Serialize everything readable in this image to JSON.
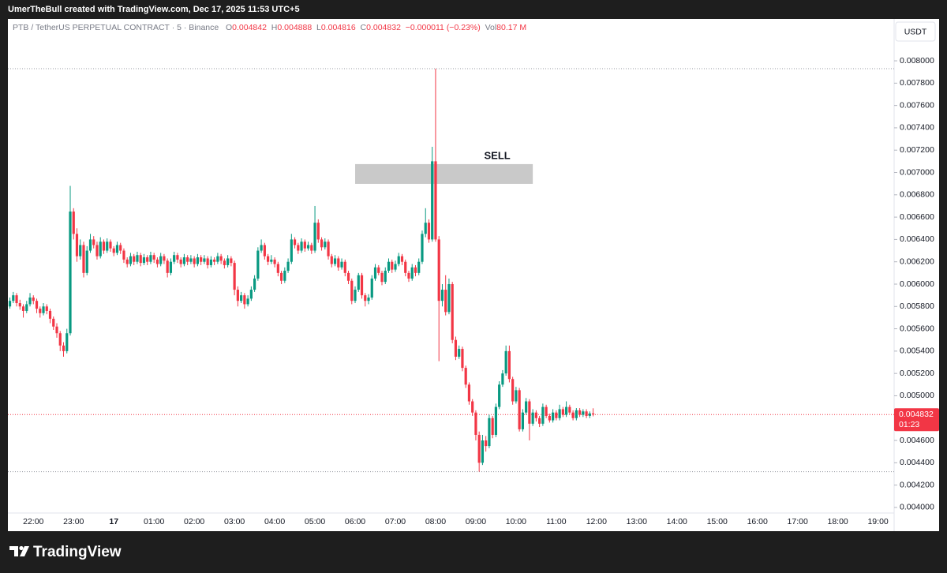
{
  "header": {
    "credit": "UmerTheBull created with TradingView.com, Dec 17, 2025 11:53 UTC+5"
  },
  "footer": {
    "brand": "TradingView"
  },
  "chart_data": {
    "type": "candlestick",
    "legend": {
      "symbol": "PTB / TetherUS PERPETUAL CONTRACT · 5 · Binance",
      "open_label": "O",
      "open": 0.004842,
      "high_label": "H",
      "high": 0.004888,
      "low_label": "L",
      "low": 0.004816,
      "close_label": "C",
      "close": 0.004832,
      "change": "−0.000011 (−0.23%)",
      "volume_label": "Vol",
      "volume": "80.17 M"
    },
    "currency": "USDT",
    "up_color": "#089981",
    "down_color": "#f23645",
    "x": [
      "21:25",
      "21:30",
      "21:35",
      "21:40",
      "21:45",
      "21:50",
      "21:55",
      "22:00",
      "22:05",
      "22:10",
      "22:15",
      "22:20",
      "22:25",
      "22:30",
      "22:35",
      "22:40",
      "22:45",
      "22:50",
      "22:55",
      "23:00",
      "23:05",
      "23:10",
      "23:15",
      "23:20",
      "23:25",
      "23:30",
      "23:35",
      "23:40",
      "23:45",
      "23:50",
      "23:55",
      "00:00",
      "00:05",
      "00:10",
      "00:15",
      "00:20",
      "00:25",
      "00:30",
      "00:35",
      "00:40",
      "00:45",
      "00:50",
      "00:55",
      "01:00",
      "01:05",
      "01:10",
      "01:15",
      "01:20",
      "01:25",
      "01:30",
      "01:35",
      "01:40",
      "01:45",
      "01:50",
      "01:55",
      "02:00",
      "02:05",
      "02:10",
      "02:15",
      "02:20",
      "02:25",
      "02:30",
      "02:35",
      "02:40",
      "02:45",
      "02:50",
      "02:55",
      "03:00",
      "03:05",
      "03:10",
      "03:15",
      "03:20",
      "03:25",
      "03:30",
      "03:35",
      "03:40",
      "03:45",
      "03:50",
      "03:55",
      "04:00",
      "04:05",
      "04:10",
      "04:15",
      "04:20",
      "04:25",
      "04:30",
      "04:35",
      "04:40",
      "04:45",
      "04:50",
      "04:55",
      "05:00",
      "05:05",
      "05:10",
      "05:15",
      "05:20",
      "05:25",
      "05:30",
      "05:35",
      "05:40",
      "05:45",
      "05:50",
      "05:55",
      "06:00",
      "06:05",
      "06:10",
      "06:15",
      "06:20",
      "06:25",
      "06:30",
      "06:35",
      "06:40",
      "06:45",
      "06:50",
      "06:55",
      "07:00",
      "07:05",
      "07:10",
      "07:15",
      "07:20",
      "07:25",
      "07:30",
      "07:35",
      "07:40",
      "07:45",
      "07:50",
      "07:55",
      "08:00",
      "08:05",
      "08:10",
      "08:15",
      "08:20",
      "08:25",
      "08:30",
      "08:35",
      "08:40",
      "08:45",
      "08:50",
      "08:55",
      "09:00",
      "09:05",
      "09:10",
      "09:15",
      "09:20",
      "09:25",
      "09:30",
      "09:35",
      "09:40",
      "09:45",
      "09:50",
      "09:55",
      "10:00",
      "10:05",
      "10:10",
      "10:15",
      "10:20",
      "10:25",
      "10:30",
      "10:35",
      "10:40",
      "10:45",
      "10:50",
      "10:55",
      "11:00",
      "11:05",
      "11:10",
      "11:15",
      "11:20",
      "11:25",
      "11:30",
      "11:35",
      "11:40",
      "11:45",
      "11:50",
      "11:55"
    ],
    "open": [
      0.0058,
      0.00585,
      0.0059,
      0.00583,
      0.0058,
      0.00576,
      0.00582,
      0.00588,
      0.00585,
      0.00578,
      0.00574,
      0.0058,
      0.00576,
      0.00569,
      0.00562,
      0.00556,
      0.00545,
      0.0054,
      0.00556,
      0.00665,
      0.00645,
      0.00625,
      0.00635,
      0.0061,
      0.0063,
      0.0064,
      0.00635,
      0.00625,
      0.00638,
      0.0063,
      0.00638,
      0.00632,
      0.00628,
      0.00635,
      0.0063,
      0.00622,
      0.00618,
      0.00625,
      0.0062,
      0.00626,
      0.00619,
      0.00624,
      0.0062,
      0.00626,
      0.00622,
      0.00618,
      0.00625,
      0.00621,
      0.0061,
      0.0062,
      0.00626,
      0.00622,
      0.00618,
      0.00624,
      0.0062,
      0.00623,
      0.00618,
      0.00624,
      0.0062,
      0.00623,
      0.00617,
      0.00622,
      0.0062,
      0.00625,
      0.00621,
      0.00617,
      0.00623,
      0.00619,
      0.00595,
      0.00585,
      0.0059,
      0.00582,
      0.00587,
      0.00595,
      0.00605,
      0.0063,
      0.00635,
      0.00625,
      0.0062,
      0.00622,
      0.00618,
      0.0061,
      0.00603,
      0.00612,
      0.0062,
      0.0064,
      0.00635,
      0.0063,
      0.00638,
      0.00632,
      0.00635,
      0.0063,
      0.00655,
      0.0064,
      0.00633,
      0.00638,
      0.00625,
      0.00618,
      0.00623,
      0.00615,
      0.0062,
      0.0061,
      0.00603,
      0.00585,
      0.00595,
      0.00608,
      0.0059,
      0.00585,
      0.00588,
      0.00605,
      0.00615,
      0.0061,
      0.00602,
      0.00612,
      0.0062,
      0.00613,
      0.00618,
      0.00625,
      0.0062,
      0.0061,
      0.00605,
      0.00615,
      0.0061,
      0.0062,
      0.00645,
      0.00655,
      0.0064,
      0.0071,
      0.0064,
      0.00585,
      0.00595,
      0.00575,
      0.006,
      0.0055,
      0.00535,
      0.00542,
      0.00525,
      0.0051,
      0.00495,
      0.00485,
      0.00465,
      0.0044,
      0.0046,
      0.00455,
      0.0048,
      0.00465,
      0.0049,
      0.0051,
      0.0052,
      0.0054,
      0.00515,
      0.00495,
      0.00505,
      0.0047,
      0.00485,
      0.00495,
      0.00475,
      0.00485,
      0.0048,
      0.00475,
      0.0049,
      0.00482,
      0.00478,
      0.00485,
      0.0048,
      0.00488,
      0.00483,
      0.0049,
      0.00485,
      0.0048,
      0.00487,
      0.00483,
      0.00486,
      0.00482,
      0.004842
    ],
    "high": [
      0.00588,
      0.00593,
      0.00592,
      0.00586,
      0.00582,
      0.00585,
      0.00592,
      0.0059,
      0.00587,
      0.0058,
      0.00583,
      0.00582,
      0.00578,
      0.00571,
      0.00565,
      0.00558,
      0.00548,
      0.0056,
      0.00688,
      0.00668,
      0.0065,
      0.0064,
      0.00638,
      0.00634,
      0.00645,
      0.00643,
      0.00638,
      0.00642,
      0.0064,
      0.00641,
      0.0064,
      0.00634,
      0.00638,
      0.00637,
      0.00632,
      0.00624,
      0.00628,
      0.00627,
      0.00629,
      0.00628,
      0.00627,
      0.00626,
      0.00629,
      0.00628,
      0.00624,
      0.00628,
      0.00627,
      0.00623,
      0.00623,
      0.00629,
      0.00628,
      0.00624,
      0.00627,
      0.00626,
      0.00626,
      0.00625,
      0.00627,
      0.00626,
      0.00626,
      0.00625,
      0.00625,
      0.00624,
      0.00628,
      0.00627,
      0.00623,
      0.00626,
      0.00625,
      0.00621,
      0.00598,
      0.00593,
      0.00592,
      0.0059,
      0.00598,
      0.00608,
      0.00633,
      0.0064,
      0.00637,
      0.00627,
      0.00626,
      0.00624,
      0.0062,
      0.00612,
      0.00615,
      0.00623,
      0.00645,
      0.00642,
      0.00637,
      0.00641,
      0.0064,
      0.00638,
      0.00637,
      0.0067,
      0.00658,
      0.00642,
      0.00641,
      0.0064,
      0.00627,
      0.00626,
      0.00625,
      0.00623,
      0.00622,
      0.00612,
      0.00605,
      0.00598,
      0.0061,
      0.0061,
      0.00592,
      0.00591,
      0.00608,
      0.00618,
      0.00617,
      0.00612,
      0.00615,
      0.00623,
      0.00622,
      0.00621,
      0.00628,
      0.00627,
      0.00622,
      0.00612,
      0.00618,
      0.00617,
      0.00623,
      0.00648,
      0.00668,
      0.00658,
      0.00723,
      0.00793,
      0.00643,
      0.006,
      0.00608,
      0.00605,
      0.00602,
      0.00553,
      0.00545,
      0.00544,
      0.00527,
      0.00512,
      0.00497,
      0.00487,
      0.00468,
      0.00465,
      0.00464,
      0.00483,
      0.00482,
      0.00493,
      0.00513,
      0.00523,
      0.00545,
      0.00545,
      0.00517,
      0.00508,
      0.00507,
      0.00488,
      0.00498,
      0.00497,
      0.00488,
      0.00487,
      0.00482,
      0.00493,
      0.00492,
      0.00484,
      0.00488,
      0.00487,
      0.00492,
      0.0049,
      0.00495,
      0.00492,
      0.00487,
      0.00489,
      0.00489,
      0.00488,
      0.00488,
      0.00486,
      0.004888
    ],
    "low": [
      0.00578,
      0.00583,
      0.0058,
      0.00577,
      0.0057,
      0.00574,
      0.0058,
      0.00582,
      0.00574,
      0.0057,
      0.00572,
      0.00573,
      0.00565,
      0.00559,
      0.00552,
      0.0054,
      0.00535,
      0.00538,
      0.00554,
      0.0064,
      0.0062,
      0.00622,
      0.00606,
      0.00608,
      0.00628,
      0.00632,
      0.00622,
      0.00623,
      0.00627,
      0.00628,
      0.00629,
      0.00625,
      0.00626,
      0.00627,
      0.00619,
      0.00615,
      0.00616,
      0.00617,
      0.00618,
      0.00616,
      0.00617,
      0.00617,
      0.00618,
      0.00619,
      0.00615,
      0.00616,
      0.00618,
      0.00606,
      0.00608,
      0.00618,
      0.00619,
      0.00615,
      0.00616,
      0.00617,
      0.00618,
      0.00615,
      0.00616,
      0.00617,
      0.00618,
      0.00614,
      0.00615,
      0.00617,
      0.00618,
      0.00618,
      0.00614,
      0.00615,
      0.00616,
      0.0059,
      0.0058,
      0.00583,
      0.00578,
      0.0058,
      0.00585,
      0.00593,
      0.00603,
      0.00628,
      0.00622,
      0.00617,
      0.00618,
      0.00615,
      0.00607,
      0.006,
      0.00601,
      0.0061,
      0.00618,
      0.00632,
      0.00627,
      0.00628,
      0.00629,
      0.0063,
      0.00627,
      0.00628,
      0.00637,
      0.0063,
      0.00631,
      0.00622,
      0.00615,
      0.00616,
      0.00612,
      0.00613,
      0.00607,
      0.006,
      0.00582,
      0.00583,
      0.00593,
      0.00587,
      0.0058,
      0.00582,
      0.00586,
      0.00603,
      0.00608,
      0.00599,
      0.006,
      0.0061,
      0.0061,
      0.00611,
      0.00616,
      0.00617,
      0.00607,
      0.00602,
      0.00603,
      0.00607,
      0.00608,
      0.00618,
      0.00642,
      0.00637,
      0.00638,
      0.00638,
      0.00531,
      0.0058,
      0.00572,
      0.00573,
      0.00547,
      0.00532,
      0.00533,
      0.00522,
      0.00507,
      0.00492,
      0.00482,
      0.0046,
      0.00432,
      0.00438,
      0.0045,
      0.00453,
      0.00462,
      0.00463,
      0.00488,
      0.00508,
      0.00518,
      0.00512,
      0.00492,
      0.00493,
      0.00468,
      0.00468,
      0.00483,
      0.0046,
      0.00473,
      0.00477,
      0.00472,
      0.00473,
      0.0048,
      0.00476,
      0.00476,
      0.00478,
      0.00478,
      0.00481,
      0.00481,
      0.00483,
      0.00478,
      0.00478,
      0.00481,
      0.00481,
      0.0048,
      0.0048,
      0.004816
    ],
    "close": [
      0.00585,
      0.0059,
      0.00583,
      0.0058,
      0.00576,
      0.00582,
      0.00588,
      0.00585,
      0.00578,
      0.00574,
      0.0058,
      0.00576,
      0.00569,
      0.00562,
      0.00556,
      0.00545,
      0.0054,
      0.00556,
      0.00665,
      0.00645,
      0.00625,
      0.00635,
      0.0061,
      0.0063,
      0.0064,
      0.00635,
      0.00625,
      0.00638,
      0.0063,
      0.00638,
      0.00632,
      0.00628,
      0.00635,
      0.0063,
      0.00622,
      0.00618,
      0.00625,
      0.0062,
      0.00626,
      0.00619,
      0.00624,
      0.0062,
      0.00626,
      0.00622,
      0.00618,
      0.00625,
      0.00621,
      0.0061,
      0.0062,
      0.00626,
      0.00622,
      0.00618,
      0.00624,
      0.0062,
      0.00623,
      0.00618,
      0.00624,
      0.0062,
      0.00623,
      0.00617,
      0.00622,
      0.0062,
      0.00625,
      0.00621,
      0.00617,
      0.00623,
      0.00619,
      0.00595,
      0.00585,
      0.0059,
      0.00582,
      0.00587,
      0.00595,
      0.00605,
      0.0063,
      0.00635,
      0.00625,
      0.0062,
      0.00622,
      0.00618,
      0.0061,
      0.00603,
      0.00612,
      0.0062,
      0.0064,
      0.00635,
      0.0063,
      0.00638,
      0.00632,
      0.00635,
      0.0063,
      0.00655,
      0.0064,
      0.00633,
      0.00638,
      0.00625,
      0.00618,
      0.00623,
      0.00615,
      0.0062,
      0.0061,
      0.00603,
      0.00585,
      0.00595,
      0.00608,
      0.0059,
      0.00585,
      0.00588,
      0.00605,
      0.00615,
      0.0061,
      0.00602,
      0.00612,
      0.0062,
      0.00613,
      0.00618,
      0.00625,
      0.0062,
      0.0061,
      0.00605,
      0.00615,
      0.0061,
      0.0062,
      0.00645,
      0.00655,
      0.0064,
      0.0071,
      0.0064,
      0.00585,
      0.00595,
      0.00575,
      0.006,
      0.0055,
      0.00535,
      0.00542,
      0.00525,
      0.0051,
      0.00495,
      0.00485,
      0.00465,
      0.0044,
      0.0046,
      0.00455,
      0.0048,
      0.00465,
      0.0049,
      0.0051,
      0.0052,
      0.0054,
      0.00515,
      0.00495,
      0.00505,
      0.0047,
      0.00485,
      0.00495,
      0.00475,
      0.00485,
      0.0048,
      0.00475,
      0.0049,
      0.00482,
      0.00478,
      0.00485,
      0.0048,
      0.00488,
      0.00483,
      0.0049,
      0.00485,
      0.0048,
      0.00487,
      0.00483,
      0.00486,
      0.00482,
      0.004842,
      0.004832
    ],
    "xlim": [
      "21:22",
      "19:24"
    ],
    "xticks": [
      "22:00",
      "23:00",
      {
        "value": "00:00",
        "label": "17"
      },
      "01:00",
      "02:00",
      "03:00",
      "04:00",
      "05:00",
      "06:00",
      "07:00",
      "08:00",
      "09:00",
      "10:00",
      "11:00",
      "12:00",
      "13:00",
      "14:00",
      "15:00",
      "16:00",
      "17:00",
      "18:00",
      "19:00"
    ],
    "ylim": [
      0.00395,
      0.008375
    ],
    "yticks": [
      {
        "value": 0.004,
        "label": "0.004000"
      },
      {
        "value": 0.0042,
        "label": "0.004200"
      },
      {
        "value": 0.0044,
        "label": "0.004400"
      },
      {
        "value": 0.0046,
        "label": "0.004600"
      },
      {
        "value": 0.0048,
        "label": "0.004800"
      },
      {
        "value": 0.005,
        "label": "0.005000"
      },
      {
        "value": 0.0052,
        "label": "0.005200"
      },
      {
        "value": 0.0054,
        "label": "0.005400"
      },
      {
        "value": 0.0056,
        "label": "0.005600"
      },
      {
        "value": 0.0058,
        "label": "0.005800"
      },
      {
        "value": 0.006,
        "label": "0.006000"
      },
      {
        "value": 0.0062,
        "label": "0.006200"
      },
      {
        "value": 0.0064,
        "label": "0.006400"
      },
      {
        "value": 0.0066,
        "label": "0.006600"
      },
      {
        "value": 0.0068,
        "label": "0.006800"
      },
      {
        "value": 0.007,
        "label": "0.007000"
      },
      {
        "value": 0.0072,
        "label": "0.007200"
      },
      {
        "value": 0.0074,
        "label": "0.007400"
      },
      {
        "value": 0.0076,
        "label": "0.007600"
      },
      {
        "value": 0.0078,
        "label": "0.007800"
      },
      {
        "value": 0.008,
        "label": "0.008000"
      }
    ],
    "hlines": [
      0.00793,
      0.00432
    ],
    "last_price": 0.004832,
    "countdown": "01:23",
    "zone": {
      "top": 0.007075,
      "bottom": 0.006898,
      "start": "06:00",
      "end": "10:25",
      "label": "SELL"
    }
  }
}
